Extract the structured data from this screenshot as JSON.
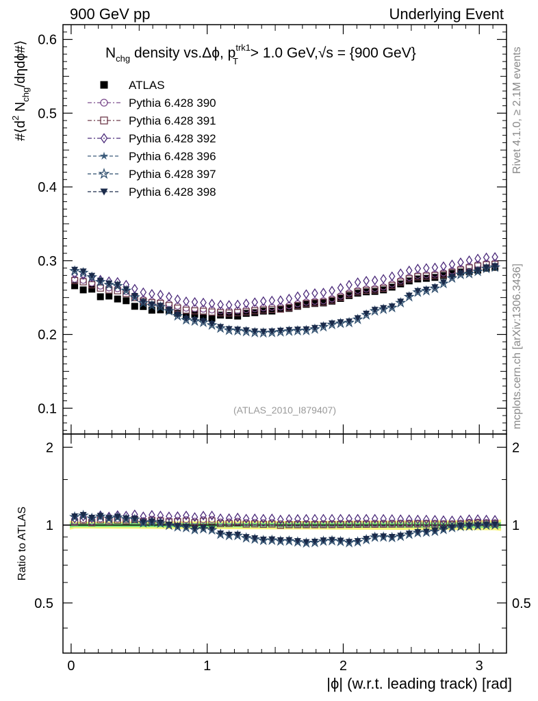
{
  "header": {
    "left": "900 GeV pp",
    "right": "Underlying Event"
  },
  "side_labels": {
    "rivet": "Rivet 4.1.0, ≥ 2.1M events",
    "mcplots": "mcplots.cern.ch [arXiv:1306.3436]"
  },
  "chart_data": {
    "type": "scatter",
    "title": {
      "nchg": "N",
      "nchg_sub": "chg",
      "mid": " density vs.Δϕ, p",
      "pt_sup": "trk1",
      "pt_sub": "T",
      "cut": " > 1.0 GeV,",
      "sqrt": "√s",
      "energy": " = {900 GeV}"
    },
    "watermark": "(ATLAS_2010_I879407)",
    "xlabel": "|ϕ| (w.r.t. leading track) [rad]",
    "ylabel": {
      "p1": "#⟨d",
      "sup2": "2",
      "p2": " N",
      "sub": "chg",
      "p3": "/dηdϕ#⟩"
    },
    "ratio_ylabel": "Ratio to ATLAS",
    "xlim": [
      -0.06,
      3.2
    ],
    "ylim": [
      0.065,
      0.62
    ],
    "ratio_ylim": [
      0.32,
      2.25
    ],
    "x_ticks": [
      0,
      1,
      2,
      3
    ],
    "x_tick_labels": [
      "0",
      "1",
      "2",
      "3"
    ],
    "y_ticks": [
      0.1,
      0.2,
      0.3,
      0.4,
      0.5,
      0.6
    ],
    "y_tick_labels": [
      "0.1",
      "0.2",
      "0.3",
      "0.4",
      "0.5",
      "0.6"
    ],
    "ratio_ticks": [
      0.5,
      1,
      2
    ],
    "ratio_tick_labels": [
      "0.5",
      "1",
      "2"
    ],
    "ratio_band": {
      "inner_color": "#7de27d",
      "outer_color": "#f5f57a"
    },
    "series": [
      {
        "name": "ATLAS",
        "color": "#000000",
        "marker": "filled-square",
        "line": "none",
        "control": [
          [
            0.026,
            0.266
          ],
          [
            0.3,
            0.25
          ],
          [
            0.6,
            0.234
          ],
          [
            0.9,
            0.226
          ],
          [
            1.0,
            0.223
          ],
          [
            1.2,
            0.226
          ],
          [
            1.5,
            0.233
          ],
          [
            1.8,
            0.242
          ],
          [
            2.2,
            0.258
          ],
          [
            2.6,
            0.276
          ],
          [
            2.9,
            0.285
          ],
          [
            3.115,
            0.291
          ]
        ],
        "jitter": [
          0,
          -0.006,
          0.004,
          -0.004,
          0.003,
          -0.002,
          0,
          -0.004,
          0.003,
          -0.002,
          0,
          0.002,
          0,
          -0.003,
          0.002,
          0,
          -0.002,
          0.003,
          0,
          -0.002,
          0.002,
          0,
          0,
          -0.002,
          0.002,
          0,
          0,
          0,
          0,
          0,
          0,
          0,
          0,
          0,
          0,
          0,
          0,
          0,
          0,
          0,
          0,
          0,
          0,
          0,
          0,
          0,
          0,
          0,
          0,
          0
        ]
      },
      {
        "name": "Pythia 6.428 390",
        "color": "#7a4a8c",
        "marker": "open-circle",
        "line": "dash-dot",
        "control": [
          [
            0.026,
            0.275
          ],
          [
            0.3,
            0.263
          ],
          [
            0.6,
            0.245
          ],
          [
            0.9,
            0.235
          ],
          [
            1.15,
            0.232
          ],
          [
            1.5,
            0.237
          ],
          [
            1.8,
            0.245
          ],
          [
            2.2,
            0.262
          ],
          [
            2.6,
            0.281
          ],
          [
            3.115,
            0.297
          ]
        ]
      },
      {
        "name": "Pythia 6.428 391",
        "color": "#6e3a4a",
        "marker": "open-square",
        "line": "dash-dot",
        "control": [
          [
            0.026,
            0.273
          ],
          [
            0.3,
            0.26
          ],
          [
            0.6,
            0.243
          ],
          [
            0.9,
            0.232
          ],
          [
            1.15,
            0.229
          ],
          [
            1.5,
            0.234
          ],
          [
            1.8,
            0.243
          ],
          [
            2.2,
            0.26
          ],
          [
            2.6,
            0.279
          ],
          [
            3.115,
            0.295
          ]
        ]
      },
      {
        "name": "Pythia 6.428 392",
        "color": "#4b2a7a",
        "marker": "open-diamond",
        "line": "dash-dot",
        "control": [
          [
            0.026,
            0.282
          ],
          [
            0.3,
            0.272
          ],
          [
            0.6,
            0.255
          ],
          [
            0.9,
            0.244
          ],
          [
            1.15,
            0.24
          ],
          [
            1.5,
            0.246
          ],
          [
            1.8,
            0.256
          ],
          [
            2.2,
            0.273
          ],
          [
            2.6,
            0.29
          ],
          [
            3.115,
            0.305
          ]
        ]
      },
      {
        "name": "Pythia 6.428 396",
        "color": "#3a5a7a",
        "marker": "filled-star",
        "line": "dashed",
        "control": [
          [
            0.026,
            0.287
          ],
          [
            0.3,
            0.268
          ],
          [
            0.6,
            0.24
          ],
          [
            0.9,
            0.219
          ],
          [
            1.2,
            0.206
          ],
          [
            1.4,
            0.203
          ],
          [
            1.7,
            0.206
          ],
          [
            2.0,
            0.216
          ],
          [
            2.3,
            0.235
          ],
          [
            2.6,
            0.26
          ],
          [
            2.9,
            0.283
          ],
          [
            3.115,
            0.292
          ]
        ]
      },
      {
        "name": "Pythia 6.428 397",
        "color": "#2a4a6a",
        "marker": "open-star",
        "line": "dashed",
        "control": [
          [
            0.026,
            0.286
          ],
          [
            0.3,
            0.267
          ],
          [
            0.6,
            0.239
          ],
          [
            0.9,
            0.218
          ],
          [
            1.2,
            0.205
          ],
          [
            1.4,
            0.202
          ],
          [
            1.7,
            0.205
          ],
          [
            2.0,
            0.215
          ],
          [
            2.3,
            0.234
          ],
          [
            2.6,
            0.259
          ],
          [
            2.9,
            0.282
          ],
          [
            3.115,
            0.291
          ]
        ]
      },
      {
        "name": "Pythia 6.428 398",
        "color": "#1a2a4a",
        "marker": "filled-triangle-down",
        "line": "dashed",
        "control": [
          [
            0.026,
            0.288
          ],
          [
            0.3,
            0.269
          ],
          [
            0.6,
            0.241
          ],
          [
            0.9,
            0.22
          ],
          [
            1.2,
            0.207
          ],
          [
            1.4,
            0.204
          ],
          [
            1.7,
            0.207
          ],
          [
            2.0,
            0.217
          ],
          [
            2.3,
            0.236
          ],
          [
            2.6,
            0.261
          ],
          [
            2.9,
            0.284
          ],
          [
            3.115,
            0.293
          ]
        ]
      }
    ]
  }
}
